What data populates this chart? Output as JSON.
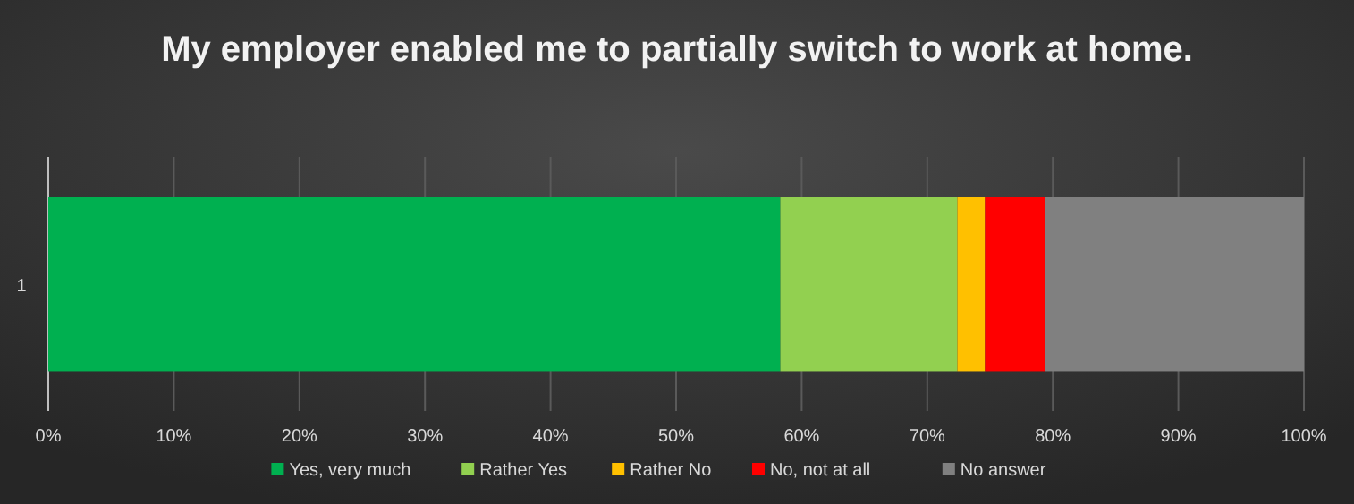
{
  "chart_data": {
    "type": "bar",
    "orientation": "horizontal",
    "stacked": true,
    "title": "My employer enabled me to partially switch to work at home.",
    "categories": [
      "1"
    ],
    "series": [
      {
        "name": "Yes, very much",
        "color": "#00b050",
        "values": [
          58.3
        ]
      },
      {
        "name": "Rather Yes",
        "color": "#92d050",
        "values": [
          14.1
        ]
      },
      {
        "name": "Rather No",
        "color": "#ffc000",
        "values": [
          2.2
        ]
      },
      {
        "name": "No, not at all",
        "color": "#ff0000",
        "values": [
          4.8
        ]
      },
      {
        "name": "No answer",
        "color": "#808080",
        "values": [
          20.6
        ]
      }
    ],
    "xlim": [
      0,
      100
    ],
    "xticks": [
      {
        "value": 0,
        "label": "0%"
      },
      {
        "value": 10,
        "label": "10%"
      },
      {
        "value": 20,
        "label": "20%"
      },
      {
        "value": 30,
        "label": "30%"
      },
      {
        "value": 40,
        "label": "40%"
      },
      {
        "value": 50,
        "label": "50%"
      },
      {
        "value": 60,
        "label": "60%"
      },
      {
        "value": 70,
        "label": "70%"
      },
      {
        "value": 80,
        "label": "80%"
      },
      {
        "value": 90,
        "label": "90%"
      },
      {
        "value": 100,
        "label": "100%"
      }
    ],
    "grid": "x",
    "legend": "bottom"
  }
}
